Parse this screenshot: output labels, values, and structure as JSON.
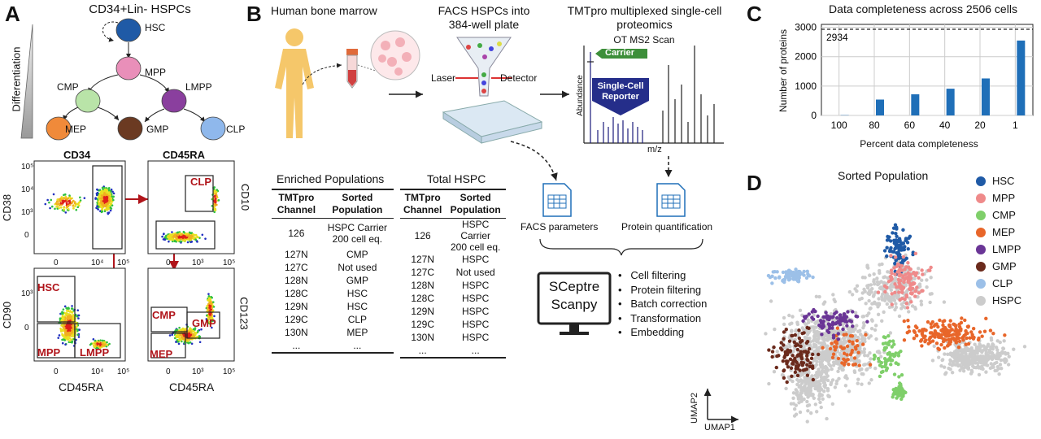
{
  "panel_labels": {
    "a": "A",
    "b": "B",
    "c": "C",
    "d": "D"
  },
  "panel_a": {
    "title": "CD34+Lin- HSPCs",
    "differentiation_label": "Differentiation",
    "tree_nodes": [
      {
        "name": "HSC",
        "color": "#1f5aa6"
      },
      {
        "name": "MPP",
        "color": "#e98fb9"
      },
      {
        "name": "CMP",
        "color": "#b9e4a8"
      },
      {
        "name": "LMPP",
        "color": "#8a3f9e"
      },
      {
        "name": "MEP",
        "color": "#f08a3a"
      },
      {
        "name": "GMP",
        "color": "#6b3a22"
      },
      {
        "name": "CLP",
        "color": "#8fb8ec"
      }
    ],
    "plots": {
      "p1": {
        "top": "CD34",
        "left": "CD38"
      },
      "p2": {
        "top": "CD45RA",
        "right": "CD10",
        "gates": [
          "CLP"
        ]
      },
      "p3": {
        "left": "CD90",
        "bottom": "CD45RA",
        "gates": [
          "HSC",
          "MPP",
          "LMPP"
        ]
      },
      "p4": {
        "right": "CD123",
        "bottom": "CD45RA",
        "gates": [
          "CMP",
          "GMP",
          "MEP"
        ]
      }
    },
    "ticks_y": [
      "10⁵",
      "10⁴",
      "10³",
      "0"
    ],
    "ticks_x": [
      "0",
      "10⁴",
      "10⁵"
    ],
    "ticks_x_alt": [
      "0",
      "10³",
      "10⁵"
    ]
  },
  "panel_b": {
    "bone_marrow": "Human bone marrow",
    "facs_title": "FACS HSPCs into\n384-well plate",
    "laser": "Laser",
    "detector": "Detector",
    "tmt_title": "TMTpro multiplexed single-cell\nproteomics",
    "ot_scan": "OT MS2 Scan",
    "carrier": "Carrier",
    "reporter": "Single-Cell\nReporter",
    "abundance": "Abundance",
    "mz": "m/z",
    "facs_params": "FACS parameters",
    "protein_quant": "Protein quantification",
    "software": "SCeptre\nScanpy",
    "steps": [
      "Cell filtering",
      "Protein filtering",
      "Batch correction",
      "Transformation",
      "Embedding"
    ],
    "enriched_title": "Enriched Populations",
    "total_title": "Total HSPC",
    "col_channel": "TMTpro\nChannel",
    "col_sorted": "Sorted\nPopulation",
    "enriched_rows": [
      [
        "126",
        "HSPC Carrier\n200 cell eq."
      ],
      [
        "127N",
        "CMP"
      ],
      [
        "127C",
        "Not used"
      ],
      [
        "128N",
        "GMP"
      ],
      [
        "128C",
        "HSC"
      ],
      [
        "129N",
        "HSC"
      ],
      [
        "129C",
        "CLP"
      ],
      [
        "130N",
        "MEP"
      ],
      [
        "...",
        "..."
      ]
    ],
    "total_rows": [
      [
        "126",
        "HSPC Carrier\n200 cell eq."
      ],
      [
        "127N",
        "HSPC"
      ],
      [
        "127C",
        "Not used"
      ],
      [
        "128N",
        "HSPC"
      ],
      [
        "128C",
        "HSPC"
      ],
      [
        "129N",
        "HSPC"
      ],
      [
        "129C",
        "HSPC"
      ],
      [
        "130N",
        "HSPC"
      ],
      [
        "...",
        "..."
      ]
    ]
  },
  "chart_data": {
    "type": "bar",
    "title": "Data completeness across 2506 cells",
    "xlabel": "Percent data completeness",
    "ylabel": "Number of proteins",
    "categories": [
      "100",
      "80",
      "60",
      "40",
      "20",
      "1"
    ],
    "values": [
      10,
      540,
      720,
      910,
      1260,
      2550
    ],
    "ylim": [
      0,
      3100
    ],
    "yticks": [
      0,
      1000,
      2000,
      3000
    ],
    "reference_line": {
      "value": 2934,
      "label": "2934"
    },
    "grid": true,
    "bar_color": "#1f6fb8"
  },
  "panel_d": {
    "title": "Sorted Population",
    "umap1": "UMAP1",
    "umap2": "UMAP2",
    "legend": [
      {
        "name": "HSC",
        "color": "#1f5aa6"
      },
      {
        "name": "MPP",
        "color": "#ef8a8a"
      },
      {
        "name": "CMP",
        "color": "#7fcf6a"
      },
      {
        "name": "MEP",
        "color": "#e8662a"
      },
      {
        "name": "LMPP",
        "color": "#6a3596"
      },
      {
        "name": "GMP",
        "color": "#6b2a1c"
      },
      {
        "name": "CLP",
        "color": "#9cc0e8"
      },
      {
        "name": "HSPC",
        "color": "#cccccc"
      }
    ]
  }
}
